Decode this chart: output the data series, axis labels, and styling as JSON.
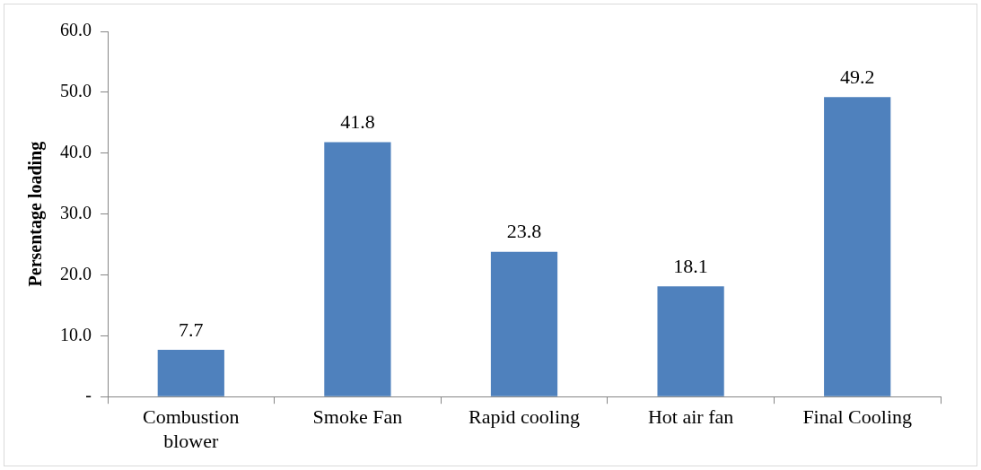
{
  "chart_data": {
    "type": "bar",
    "ylabel": "Persentage loading",
    "categories": [
      "Combustion blower",
      "Smoke Fan",
      "Rapid cooling",
      "Hot air fan",
      "Final Cooling"
    ],
    "values": [
      7.7,
      41.8,
      23.8,
      18.1,
      49.2
    ],
    "color": "#4f81bd",
    "ylim": [
      0,
      60
    ],
    "yticks": [
      {
        "value": 0,
        "label": "-"
      },
      {
        "value": 10,
        "label": "10.0"
      },
      {
        "value": 20,
        "label": "20.0"
      },
      {
        "value": 30,
        "label": "30.0"
      },
      {
        "value": 40,
        "label": "40.0"
      },
      {
        "value": 50,
        "label": "50.0"
      },
      {
        "value": 60,
        "label": "60.0"
      }
    ],
    "data_labels": true,
    "grid": false,
    "legend": false
  }
}
